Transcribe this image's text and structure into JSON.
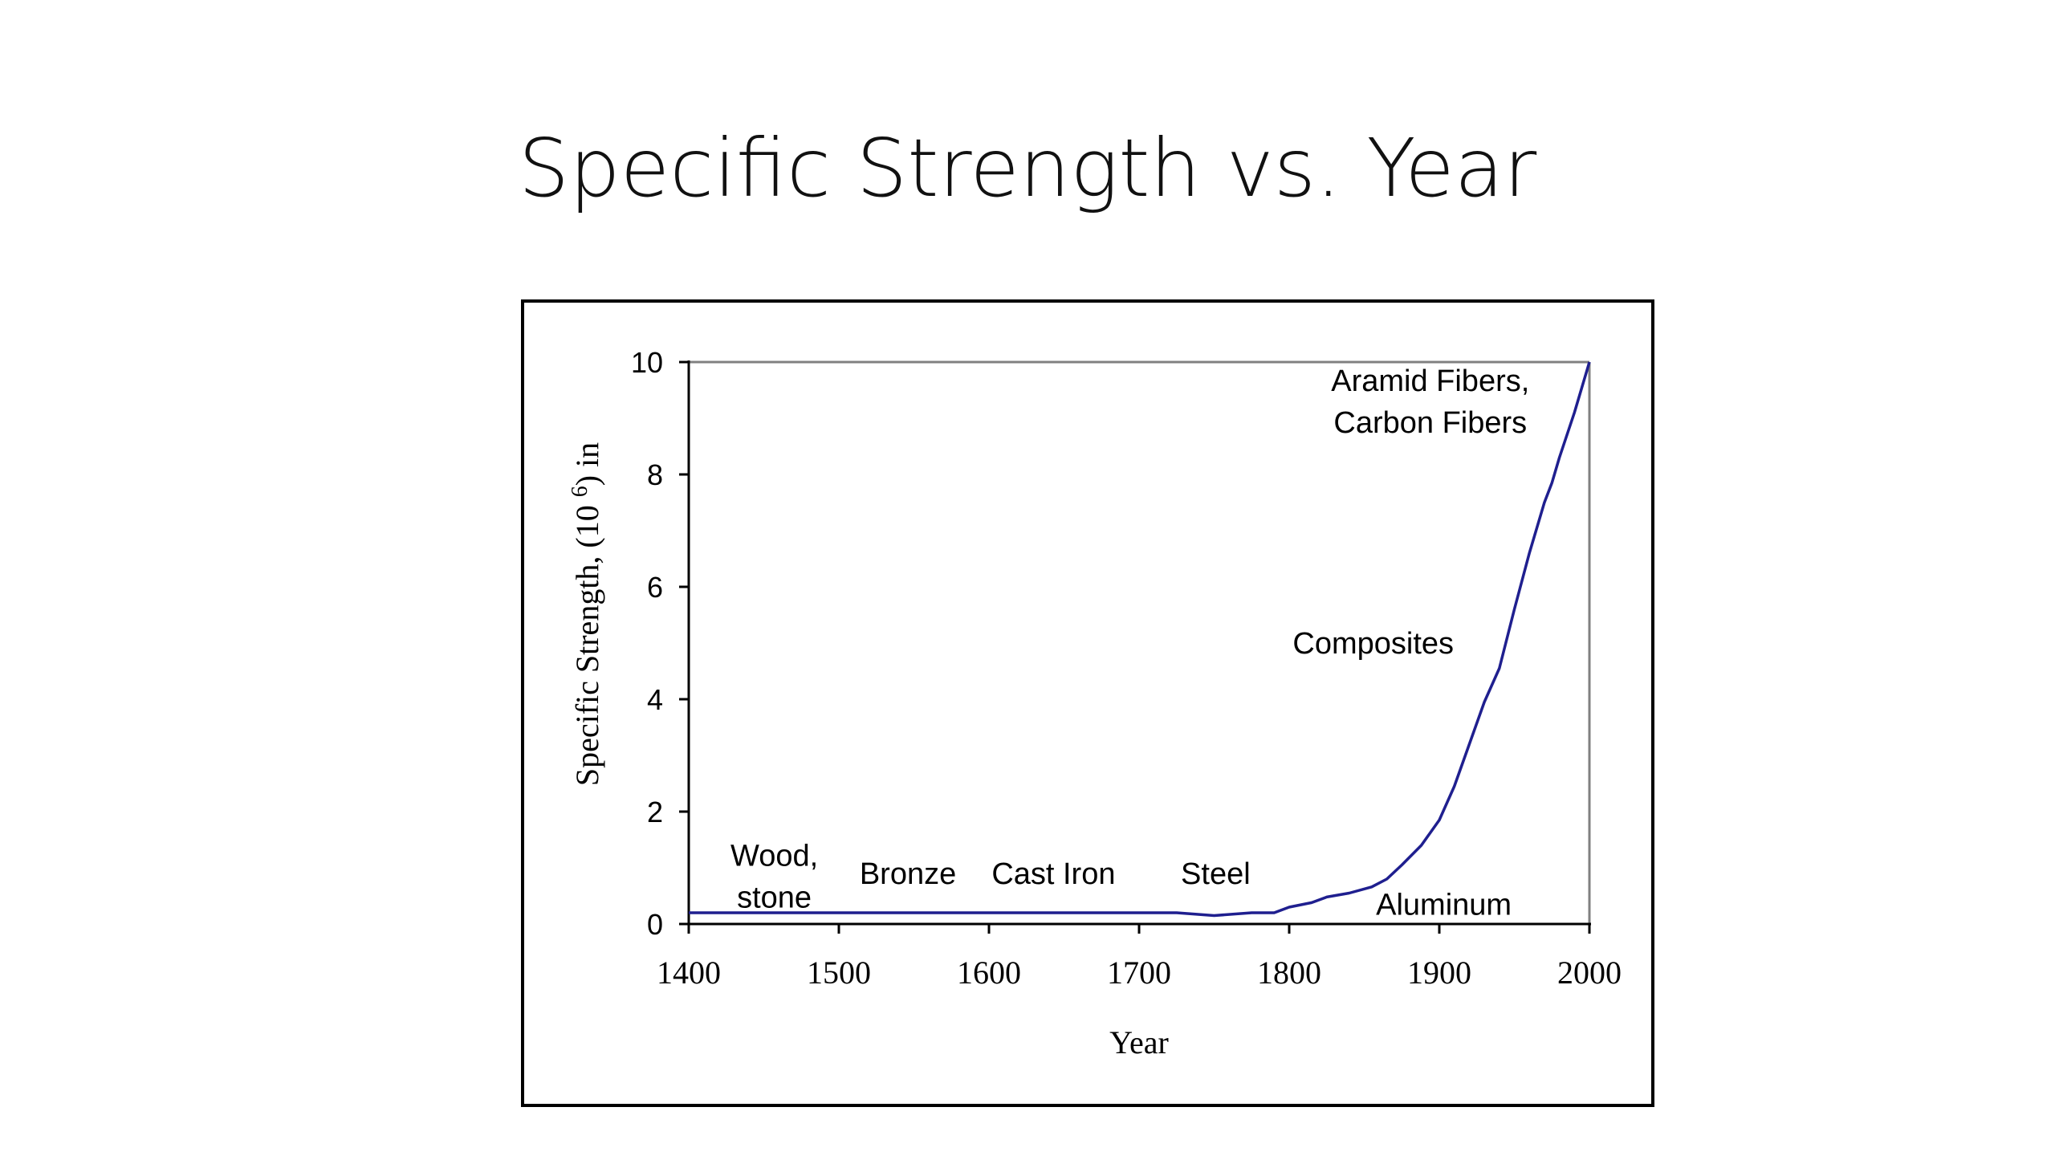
{
  "slide": {
    "title": "Specific Strength vs. Year"
  },
  "chart_data": {
    "type": "line",
    "title": "",
    "xlabel": "Year",
    "ylabel": "Specific Strength, (10 6) in",
    "ylabel_parts": {
      "before": "Specific Strength, (10 ",
      "sup": "6",
      "after": ") in"
    },
    "xlim": [
      1400,
      2000
    ],
    "ylim": [
      0,
      10
    ],
    "x_ticks": [
      1400,
      1500,
      1600,
      1700,
      1800,
      1900,
      2000
    ],
    "y_ticks": [
      0,
      2,
      4,
      6,
      8,
      10
    ],
    "grid": false,
    "legend": "none",
    "colors": {
      "line": "#1f1f8f",
      "plot_border": "#808080",
      "axis": "#000000"
    },
    "series": [
      {
        "x": [
          1400,
          1500,
          1600,
          1700,
          1725,
          1750,
          1775,
          1790,
          1800,
          1815,
          1825,
          1840,
          1855,
          1865,
          1875,
          1888,
          1900,
          1910,
          1920,
          1930,
          1940,
          1950,
          1960,
          1970,
          1975,
          1980,
          1990,
          2000
        ],
        "y": [
          0.2,
          0.2,
          0.2,
          0.2,
          0.2,
          0.15,
          0.2,
          0.2,
          0.3,
          0.38,
          0.48,
          0.55,
          0.66,
          0.8,
          1.05,
          1.4,
          1.85,
          2.45,
          3.2,
          3.95,
          4.55,
          5.6,
          6.6,
          7.5,
          7.85,
          8.3,
          9.1,
          10.0
        ]
      }
    ],
    "annotations": [
      {
        "lines": [
          "Wood,",
          "stone"
        ],
        "x": 1457,
        "y": 0.85,
        "anchor": "middle"
      },
      {
        "lines": [
          "Bronze"
        ],
        "x": 1546,
        "y": 0.9,
        "anchor": "middle"
      },
      {
        "lines": [
          "Cast Iron"
        ],
        "x": 1643,
        "y": 0.9,
        "anchor": "middle"
      },
      {
        "lines": [
          "Steel"
        ],
        "x": 1751,
        "y": 0.9,
        "anchor": "middle"
      },
      {
        "lines": [
          "Aluminum"
        ],
        "x": 1903,
        "y": 0.35,
        "anchor": "middle"
      },
      {
        "lines": [
          "Composites"
        ],
        "x": 1856,
        "y": 5.0,
        "anchor": "middle"
      },
      {
        "lines": [
          "Aramid Fibers,",
          "Carbon Fibers"
        ],
        "x": 1894,
        "y": 9.3,
        "anchor": "middle"
      }
    ]
  }
}
